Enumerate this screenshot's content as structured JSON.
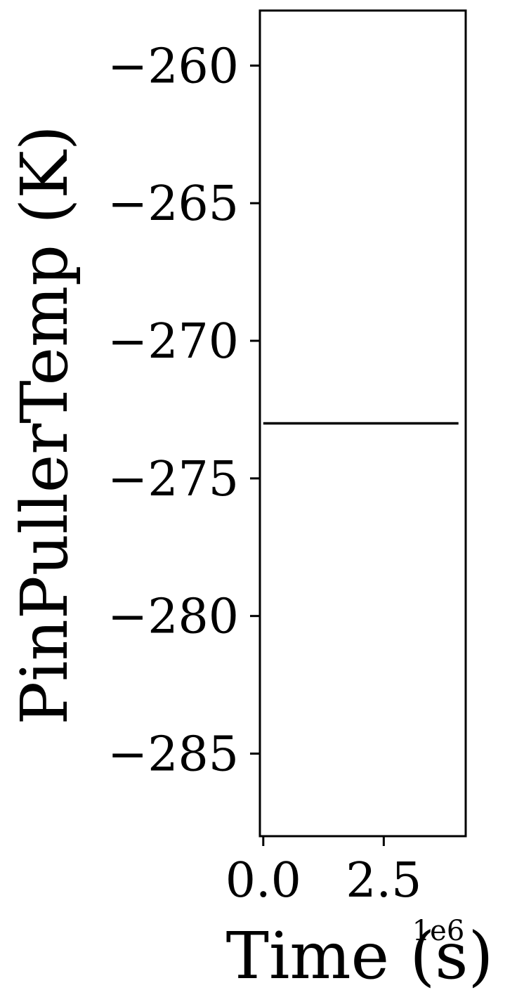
{
  "chart_data": {
    "type": "line",
    "title": "",
    "xlabel": "Time (s)",
    "ylabel": "PinPullerTemp (K)",
    "x_offset_label": "1e6",
    "xlim": [
      -0.07,
      4.2
    ],
    "ylim": [
      -288,
      -258
    ],
    "x_ticks": [
      0.0,
      2.5
    ],
    "x_tick_labels": [
      "0.0",
      "2.5"
    ],
    "y_ticks": [
      -260,
      -265,
      -270,
      -275,
      -280,
      -285
    ],
    "y_tick_labels": [
      "−260",
      "−265",
      "−270",
      "−275",
      "−280",
      "−285"
    ],
    "grid": false,
    "series": [
      {
        "color": "#000000",
        "x": [
          0.0,
          4.05
        ],
        "y": [
          -273.0,
          -273.0
        ]
      }
    ]
  }
}
